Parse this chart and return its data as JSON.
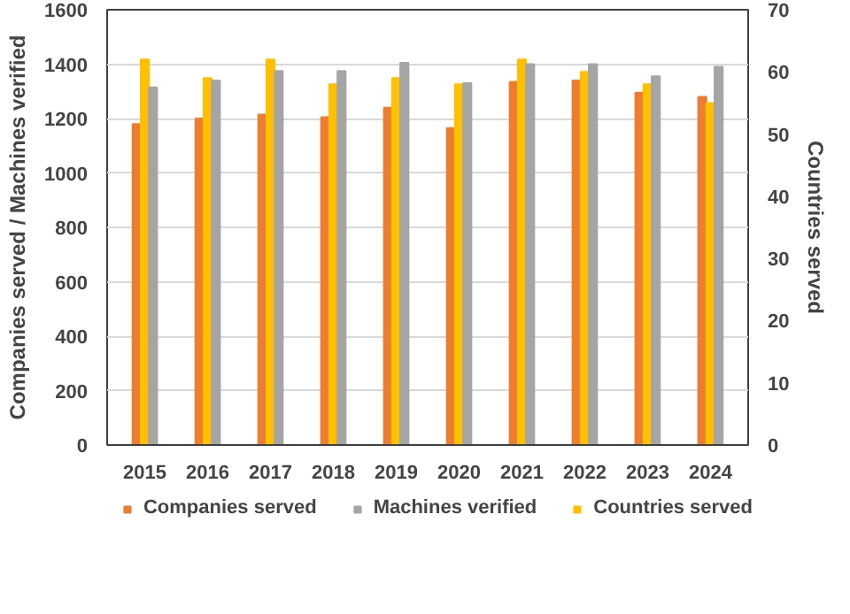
{
  "chart_data": {
    "type": "bar",
    "categories": [
      "2015",
      "2016",
      "2017",
      "2018",
      "2019",
      "2020",
      "2021",
      "2022",
      "2023",
      "2024"
    ],
    "ylabel": "Companies served / Machines verified",
    "y2label": "Countries served",
    "ylim": [
      0,
      1600
    ],
    "yticks": [
      0,
      200,
      400,
      600,
      800,
      1000,
      1200,
      1400,
      1600
    ],
    "y2lim": [
      0,
      70
    ],
    "y2ticks": [
      0,
      10,
      20,
      30,
      40,
      50,
      60,
      70
    ],
    "grid": "y",
    "legend": "bottom",
    "series": [
      {
        "name": "Companies served",
        "color": "#ed7d31",
        "values": [
          1180,
          1200,
          1215,
          1205,
          1240,
          1165,
          1335,
          1340,
          1295,
          1280
        ]
      },
      {
        "name": "Machines verified",
        "color": "#a5a5a5",
        "values": [
          1315,
          1340,
          1375,
          1375,
          1405,
          1330,
          1400,
          1400,
          1355,
          1390
        ]
      },
      {
        "name": "Countries served",
        "color": "#ffc000",
        "axis": "y2",
        "values": [
          62,
          59,
          62,
          58,
          59,
          58,
          62,
          60,
          58,
          55
        ]
      }
    ]
  }
}
